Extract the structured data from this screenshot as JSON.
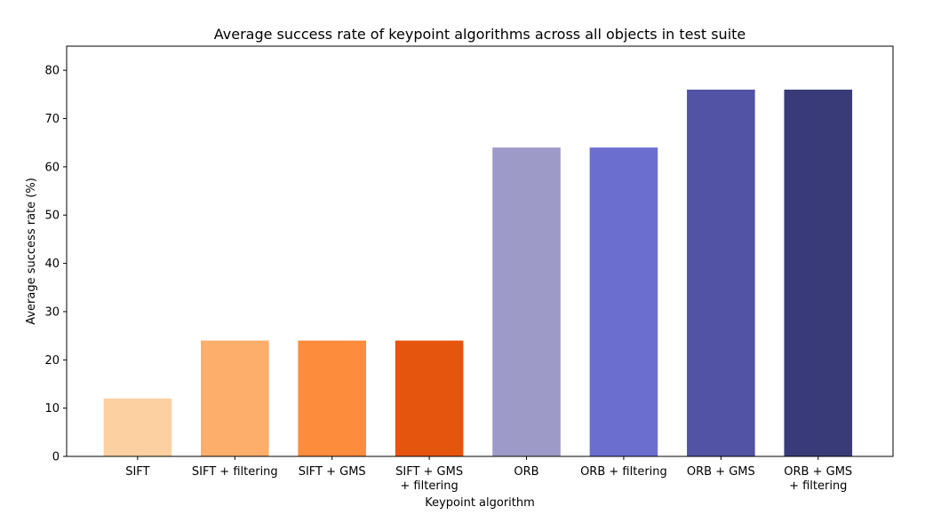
{
  "chart_data": {
    "type": "bar",
    "title": "Average success rate of keypoint algorithms across all objects in test suite",
    "xlabel": "Keypoint algorithm",
    "ylabel": "Average success rate (%)",
    "ylim": [
      0,
      85
    ],
    "yticks": [
      0,
      10,
      20,
      30,
      40,
      50,
      60,
      70,
      80
    ],
    "grid": false,
    "legend": "none",
    "categories": [
      [
        "SIFT"
      ],
      [
        "SIFT + filtering"
      ],
      [
        "SIFT + GMS"
      ],
      [
        "SIFT + GMS",
        "+ filtering"
      ],
      [
        "ORB"
      ],
      [
        "ORB + filtering"
      ],
      [
        "ORB + GMS"
      ],
      [
        "ORB + GMS",
        "+ filtering"
      ]
    ],
    "values": [
      12,
      24,
      24,
      24,
      64,
      64,
      76,
      76
    ],
    "colors": [
      "#fdd0a2",
      "#fdae6b",
      "#fd8d3c",
      "#e6550d",
      "#9e9ac8",
      "#6c6ecf",
      "#5253a4",
      "#393b79"
    ]
  }
}
